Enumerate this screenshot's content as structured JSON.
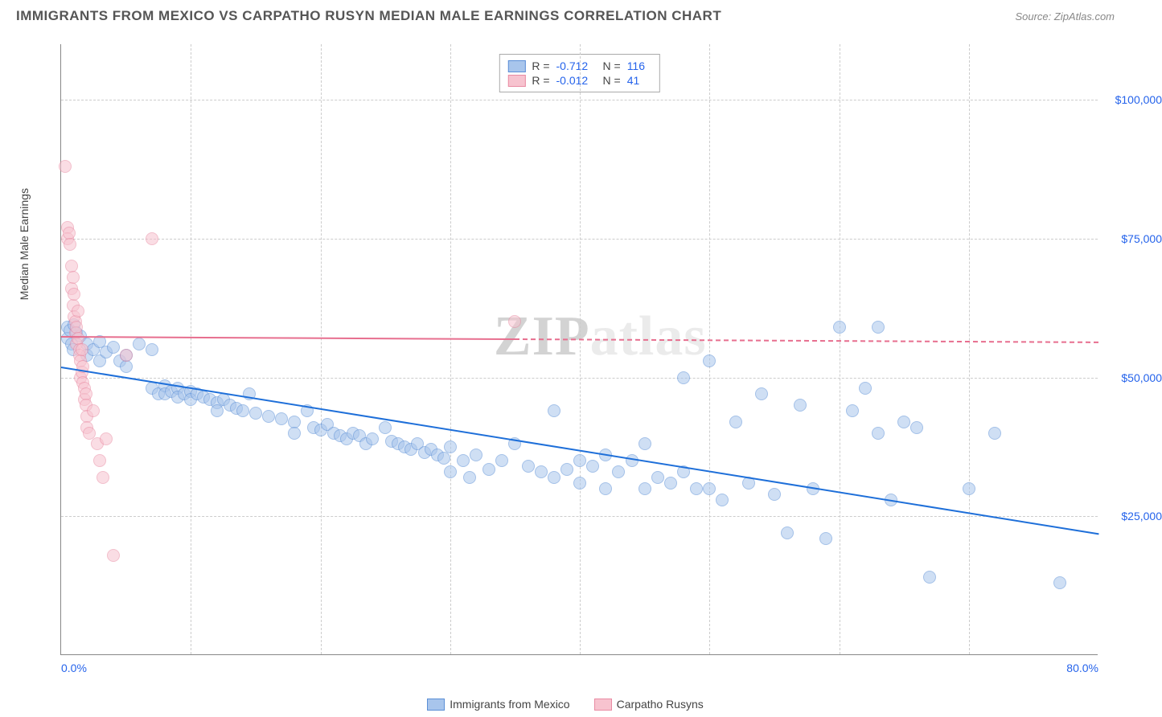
{
  "title": "IMMIGRANTS FROM MEXICO VS CARPATHO RUSYN MEDIAN MALE EARNINGS CORRELATION CHART",
  "source": "Source: ZipAtlas.com",
  "watermark_prefix": "ZIP",
  "watermark_suffix": "atlas",
  "chart": {
    "type": "scatter",
    "background_color": "#ffffff",
    "grid_color": "#cccccc",
    "axis_color": "#888888",
    "y_axis_title": "Median Male Earnings",
    "xlim": [
      0,
      80
    ],
    "ylim": [
      0,
      110000
    ],
    "x_ticks": [
      0,
      80
    ],
    "x_tick_labels": [
      "0.0%",
      "80.0%"
    ],
    "x_minor_ticks": [
      10,
      20,
      30,
      40,
      50,
      60,
      70
    ],
    "y_ticks": [
      25000,
      50000,
      75000,
      100000
    ],
    "y_tick_labels": [
      "$25,000",
      "$50,000",
      "$75,000",
      "$100,000"
    ],
    "label_color": "#2563eb",
    "label_fontsize": 14,
    "marker_size": 16,
    "marker_opacity": 0.55,
    "series": [
      {
        "name": "Immigrants from Mexico",
        "color_fill": "#a8c5ec",
        "color_stroke": "#5b8fd6",
        "r_value": "-0.712",
        "n_value": "116",
        "trend": {
          "x1": 0,
          "y1": 52000,
          "x2": 80,
          "y2": 22000,
          "color": "#1e6fd9",
          "dashed_from_x": null
        },
        "points": [
          [
            0.5,
            59000
          ],
          [
            0.5,
            57000
          ],
          [
            0.7,
            58500
          ],
          [
            0.8,
            56000
          ],
          [
            0.9,
            55000
          ],
          [
            1.0,
            59500
          ],
          [
            1.2,
            58000
          ],
          [
            1.5,
            57500
          ],
          [
            2,
            56000
          ],
          [
            2,
            54000
          ],
          [
            2.5,
            55000
          ],
          [
            3,
            56500
          ],
          [
            3,
            53000
          ],
          [
            3.5,
            54500
          ],
          [
            4,
            55500
          ],
          [
            4.5,
            53000
          ],
          [
            5,
            54000
          ],
          [
            5,
            52000
          ],
          [
            6,
            56000
          ],
          [
            7,
            55000
          ],
          [
            7,
            48000
          ],
          [
            7.5,
            47000
          ],
          [
            8,
            48500
          ],
          [
            8,
            47000
          ],
          [
            8.5,
            47500
          ],
          [
            9,
            48000
          ],
          [
            9,
            46500
          ],
          [
            9.5,
            47000
          ],
          [
            10,
            47500
          ],
          [
            10,
            46000
          ],
          [
            10.5,
            47000
          ],
          [
            11,
            46500
          ],
          [
            11.5,
            46000
          ],
          [
            12,
            45500
          ],
          [
            12,
            44000
          ],
          [
            12.5,
            46000
          ],
          [
            13,
            45000
          ],
          [
            13.5,
            44500
          ],
          [
            14,
            44000
          ],
          [
            14.5,
            47000
          ],
          [
            15,
            43500
          ],
          [
            16,
            43000
          ],
          [
            17,
            42500
          ],
          [
            18,
            42000
          ],
          [
            18,
            40000
          ],
          [
            19,
            44000
          ],
          [
            19.5,
            41000
          ],
          [
            20,
            40500
          ],
          [
            20.5,
            41500
          ],
          [
            21,
            40000
          ],
          [
            21.5,
            39500
          ],
          [
            22,
            39000
          ],
          [
            22.5,
            40000
          ],
          [
            23,
            39500
          ],
          [
            23.5,
            38000
          ],
          [
            24,
            39000
          ],
          [
            25,
            41000
          ],
          [
            25.5,
            38500
          ],
          [
            26,
            38000
          ],
          [
            26.5,
            37500
          ],
          [
            27,
            37000
          ],
          [
            27.5,
            38000
          ],
          [
            28,
            36500
          ],
          [
            28.5,
            37000
          ],
          [
            29,
            36000
          ],
          [
            29.5,
            35500
          ],
          [
            30,
            33000
          ],
          [
            30,
            37500
          ],
          [
            31,
            35000
          ],
          [
            31.5,
            32000
          ],
          [
            32,
            36000
          ],
          [
            33,
            33500
          ],
          [
            34,
            35000
          ],
          [
            35,
            38000
          ],
          [
            36,
            34000
          ],
          [
            37,
            33000
          ],
          [
            38,
            32000
          ],
          [
            38,
            44000
          ],
          [
            39,
            33500
          ],
          [
            40,
            35000
          ],
          [
            40,
            31000
          ],
          [
            41,
            34000
          ],
          [
            42,
            30000
          ],
          [
            42,
            36000
          ],
          [
            43,
            33000
          ],
          [
            44,
            35000
          ],
          [
            45,
            38000
          ],
          [
            45,
            30000
          ],
          [
            46,
            32000
          ],
          [
            47,
            31000
          ],
          [
            48,
            33000
          ],
          [
            48,
            50000
          ],
          [
            49,
            30000
          ],
          [
            50,
            53000
          ],
          [
            50,
            30000
          ],
          [
            51,
            28000
          ],
          [
            52,
            42000
          ],
          [
            53,
            31000
          ],
          [
            54,
            47000
          ],
          [
            55,
            29000
          ],
          [
            56,
            22000
          ],
          [
            57,
            45000
          ],
          [
            58,
            30000
          ],
          [
            59,
            21000
          ],
          [
            60,
            59000
          ],
          [
            61,
            44000
          ],
          [
            62,
            48000
          ],
          [
            63,
            40000
          ],
          [
            63,
            59000
          ],
          [
            64,
            28000
          ],
          [
            65,
            42000
          ],
          [
            66,
            41000
          ],
          [
            67,
            14000
          ],
          [
            70,
            30000
          ],
          [
            72,
            40000
          ],
          [
            77,
            13000
          ]
        ]
      },
      {
        "name": "Carpatho Rusyns",
        "color_fill": "#f7c3cf",
        "color_stroke": "#e98ba3",
        "r_value": "-0.012",
        "n_value": "41",
        "trend": {
          "x1": 0,
          "y1": 57500,
          "x2": 80,
          "y2": 56500,
          "color": "#e76f8f",
          "dashed_from_x": 35
        },
        "points": [
          [
            0.3,
            88000
          ],
          [
            0.5,
            77000
          ],
          [
            0.5,
            75000
          ],
          [
            0.6,
            76000
          ],
          [
            0.7,
            74000
          ],
          [
            0.8,
            70000
          ],
          [
            0.8,
            66000
          ],
          [
            0.9,
            68000
          ],
          [
            0.9,
            63000
          ],
          [
            1.0,
            65000
          ],
          [
            1.0,
            61000
          ],
          [
            1.1,
            60000
          ],
          [
            1.1,
            58000
          ],
          [
            1.2,
            59000
          ],
          [
            1.2,
            56000
          ],
          [
            1.3,
            57000
          ],
          [
            1.3,
            62000
          ],
          [
            1.4,
            55000
          ],
          [
            1.4,
            54000
          ],
          [
            1.5,
            53000
          ],
          [
            1.5,
            50000
          ],
          [
            1.6,
            51000
          ],
          [
            1.6,
            55000
          ],
          [
            1.7,
            52000
          ],
          [
            1.7,
            49000
          ],
          [
            1.8,
            48000
          ],
          [
            1.8,
            46000
          ],
          [
            1.9,
            47000
          ],
          [
            1.9,
            45000
          ],
          [
            2.0,
            43000
          ],
          [
            2.0,
            41000
          ],
          [
            2.2,
            40000
          ],
          [
            2.5,
            44000
          ],
          [
            2.8,
            38000
          ],
          [
            3.0,
            35000
          ],
          [
            3.2,
            32000
          ],
          [
            3.5,
            39000
          ],
          [
            4,
            18000
          ],
          [
            5,
            54000
          ],
          [
            7,
            75000
          ],
          [
            35,
            60000
          ]
        ]
      }
    ],
    "bottom_legend": [
      {
        "label": "Immigrants from Mexico",
        "fill": "#a8c5ec",
        "stroke": "#5b8fd6"
      },
      {
        "label": "Carpatho Rusyns",
        "fill": "#f7c3cf",
        "stroke": "#e98ba3"
      }
    ]
  }
}
